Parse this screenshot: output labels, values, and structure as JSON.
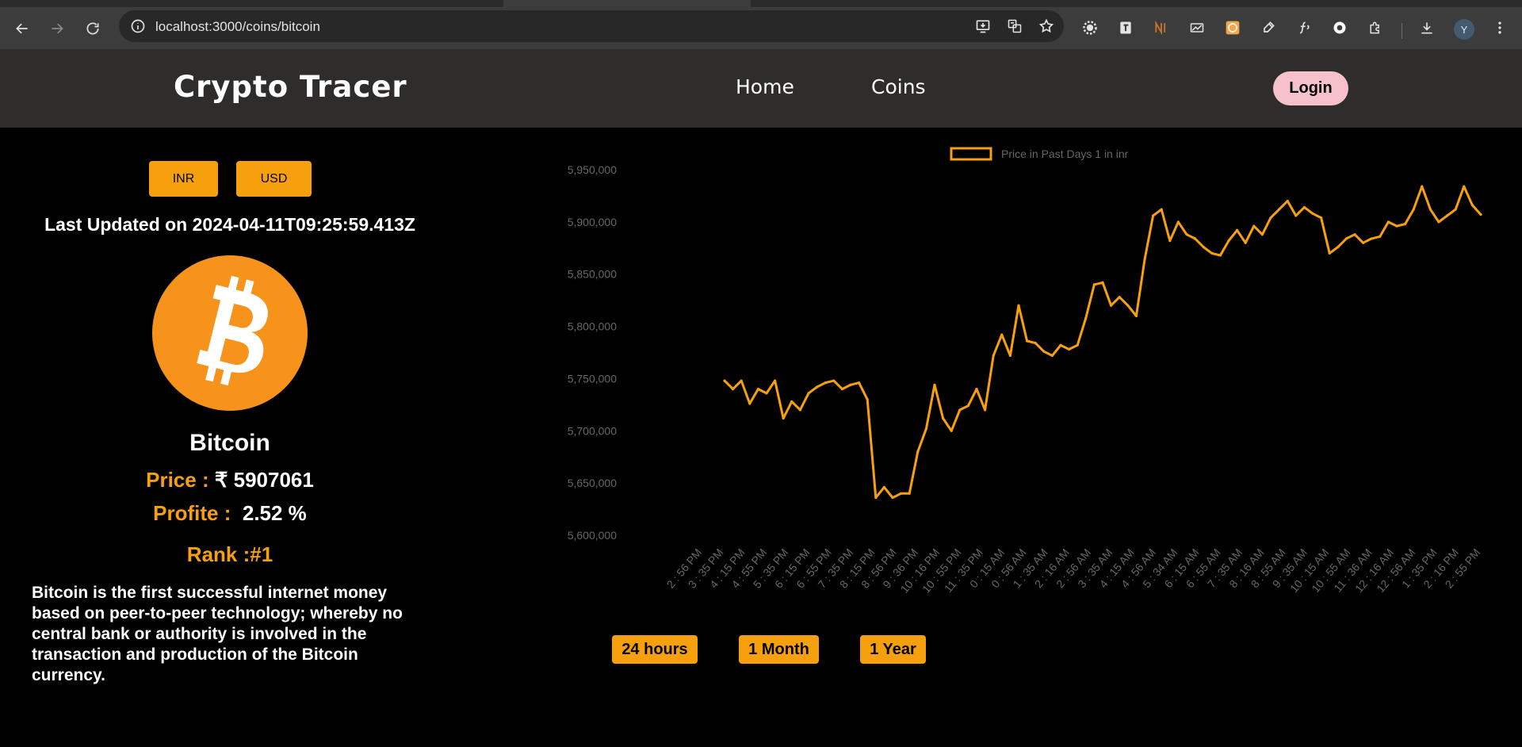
{
  "browser": {
    "url": "localhost:3000/coins/bitcoin",
    "profile_initial": "Y"
  },
  "header": {
    "brand": "Crypto Tracer",
    "nav": {
      "home": "Home",
      "coins": "Coins"
    },
    "login": "Login"
  },
  "currency": {
    "inr": "INR",
    "usd": "USD"
  },
  "coin": {
    "last_updated_label": "Last Updated on",
    "last_updated": "2024-04-11T09:25:59.413Z",
    "name": "Bitcoin",
    "price_label": "Price :",
    "price_value": "₹ 5907061",
    "profit_label": "Profite :",
    "profit_value": "2.52 %",
    "rank_label": "Rank :",
    "rank_value": "#1",
    "description": "Bitcoin is the first successful internet money based on peer-to-peer technology; whereby no central bank or authority is involved in the transaction and production of the Bitcoin currency.",
    "logo_icon": "bitcoin-icon",
    "accent_color": "#f6a00e"
  },
  "ranges": {
    "day": "24 hours",
    "month": "1 Month",
    "year": "1 Year"
  },
  "chart_data": {
    "type": "line",
    "legend": "Price in Past Days 1 in inr",
    "legend_placement": "top",
    "line_color": "#f6a00e",
    "grid": false,
    "ylim": [
      5600000,
      5950000
    ],
    "y_ticks": [
      "5,600,000",
      "5,650,000",
      "5,700,000",
      "5,750,000",
      "5,800,000",
      "5,850,000",
      "5,900,000",
      "5,950,000"
    ],
    "x_ticks": [
      "2 : 56 PM",
      "3 : 35 PM",
      "4 : 15 PM",
      "4 : 55 PM",
      "5 : 35 PM",
      "6 : 15 PM",
      "6 : 55 PM",
      "7 : 35 PM",
      "8 : 15 PM",
      "8 : 56 PM",
      "9 : 36 PM",
      "10 : 16 PM",
      "10 : 55 PM",
      "11 : 35 PM",
      "0 : 15 AM",
      "0 : 56 AM",
      "1 : 35 AM",
      "2 : 16 AM",
      "2 : 56 AM",
      "3 : 35 AM",
      "4 : 15 AM",
      "4 : 56 AM",
      "5 : 34 AM",
      "6 : 15 AM",
      "6 : 55 AM",
      "7 : 35 AM",
      "8 : 16 AM",
      "8 : 55 AM",
      "9 : 35 AM",
      "10 : 15 AM",
      "10 : 55 AM",
      "11 : 36 AM",
      "12 : 16 AM",
      "12 : 56 AM",
      "1 : 35 PM",
      "2 : 16 PM",
      "2 : 55 PM"
    ],
    "values": [
      5748000,
      5740000,
      5748000,
      5726000,
      5740000,
      5736000,
      5748000,
      5712000,
      5728000,
      5720000,
      5736000,
      5742000,
      5746000,
      5748000,
      5740000,
      5744000,
      5746000,
      5730000,
      5636000,
      5646000,
      5636000,
      5640000,
      5640000,
      5680000,
      5702000,
      5744000,
      5712000,
      5700000,
      5720000,
      5724000,
      5740000,
      5720000,
      5772000,
      5792000,
      5772000,
      5820000,
      5786000,
      5784000,
      5776000,
      5772000,
      5782000,
      5778000,
      5782000,
      5808000,
      5840000,
      5842000,
      5820000,
      5828000,
      5820000,
      5810000,
      5864000,
      5906000,
      5912000,
      5882000,
      5900000,
      5888000,
      5884000,
      5876000,
      5870000,
      5868000,
      5882000,
      5892000,
      5880000,
      5896000,
      5888000,
      5904000,
      5912000,
      5920000,
      5906000,
      5914000,
      5908000,
      5904000,
      5870000,
      5876000,
      5884000,
      5888000,
      5880000,
      5884000,
      5886000,
      5900000,
      5896000,
      5898000,
      5912000,
      5934000,
      5912000,
      5900000,
      5906000,
      5912000,
      5934000,
      5916000,
      5907061
    ]
  }
}
